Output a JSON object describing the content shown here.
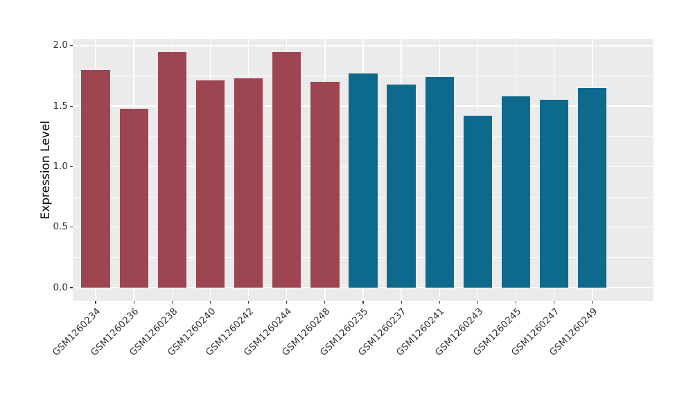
{
  "figure": {
    "background_color": "#FFFFFF",
    "panel_background_color": "#EBEBEB",
    "grid_color": "#FFFFFF",
    "axis_text_color": "#333333",
    "axis_title_color": "#000000",
    "tick_mark_color": "#333333",
    "group1_color": "#9E4552",
    "group2_color": "#0D6A8C"
  },
  "chart_data": {
    "type": "bar",
    "title": "",
    "xlabel": "",
    "ylabel": "Expression Level",
    "ylim": [
      0,
      2.05
    ],
    "grid": true,
    "legend": "none",
    "yticks": [
      0.0,
      0.5,
      1.0,
      1.5,
      2.0
    ],
    "ytick_labels": [
      "0.0",
      "0.5",
      "1.0",
      "1.5",
      "2.0"
    ],
    "minor_gridlines": [
      0.25,
      0.75,
      1.25,
      1.75
    ],
    "categories": [
      "GSM1260234",
      "GSM1260236",
      "GSM1260238",
      "GSM1260240",
      "GSM1260242",
      "GSM1260244",
      "GSM1260248",
      "GSM1260235",
      "GSM1260237",
      "GSM1260241",
      "GSM1260243",
      "GSM1260245",
      "GSM1260247",
      "GSM1260249"
    ],
    "values": [
      1.8,
      1.48,
      1.95,
      1.71,
      1.73,
      1.95,
      1.7,
      1.77,
      1.68,
      1.74,
      1.42,
      1.58,
      1.55,
      1.65
    ],
    "bar_colors": [
      "#9E4552",
      "#9E4552",
      "#9E4552",
      "#9E4552",
      "#9E4552",
      "#9E4552",
      "#9E4552",
      "#0D6A8C",
      "#0D6A8C",
      "#0D6A8C",
      "#0D6A8C",
      "#0D6A8C",
      "#0D6A8C",
      "#0D6A8C"
    ]
  }
}
